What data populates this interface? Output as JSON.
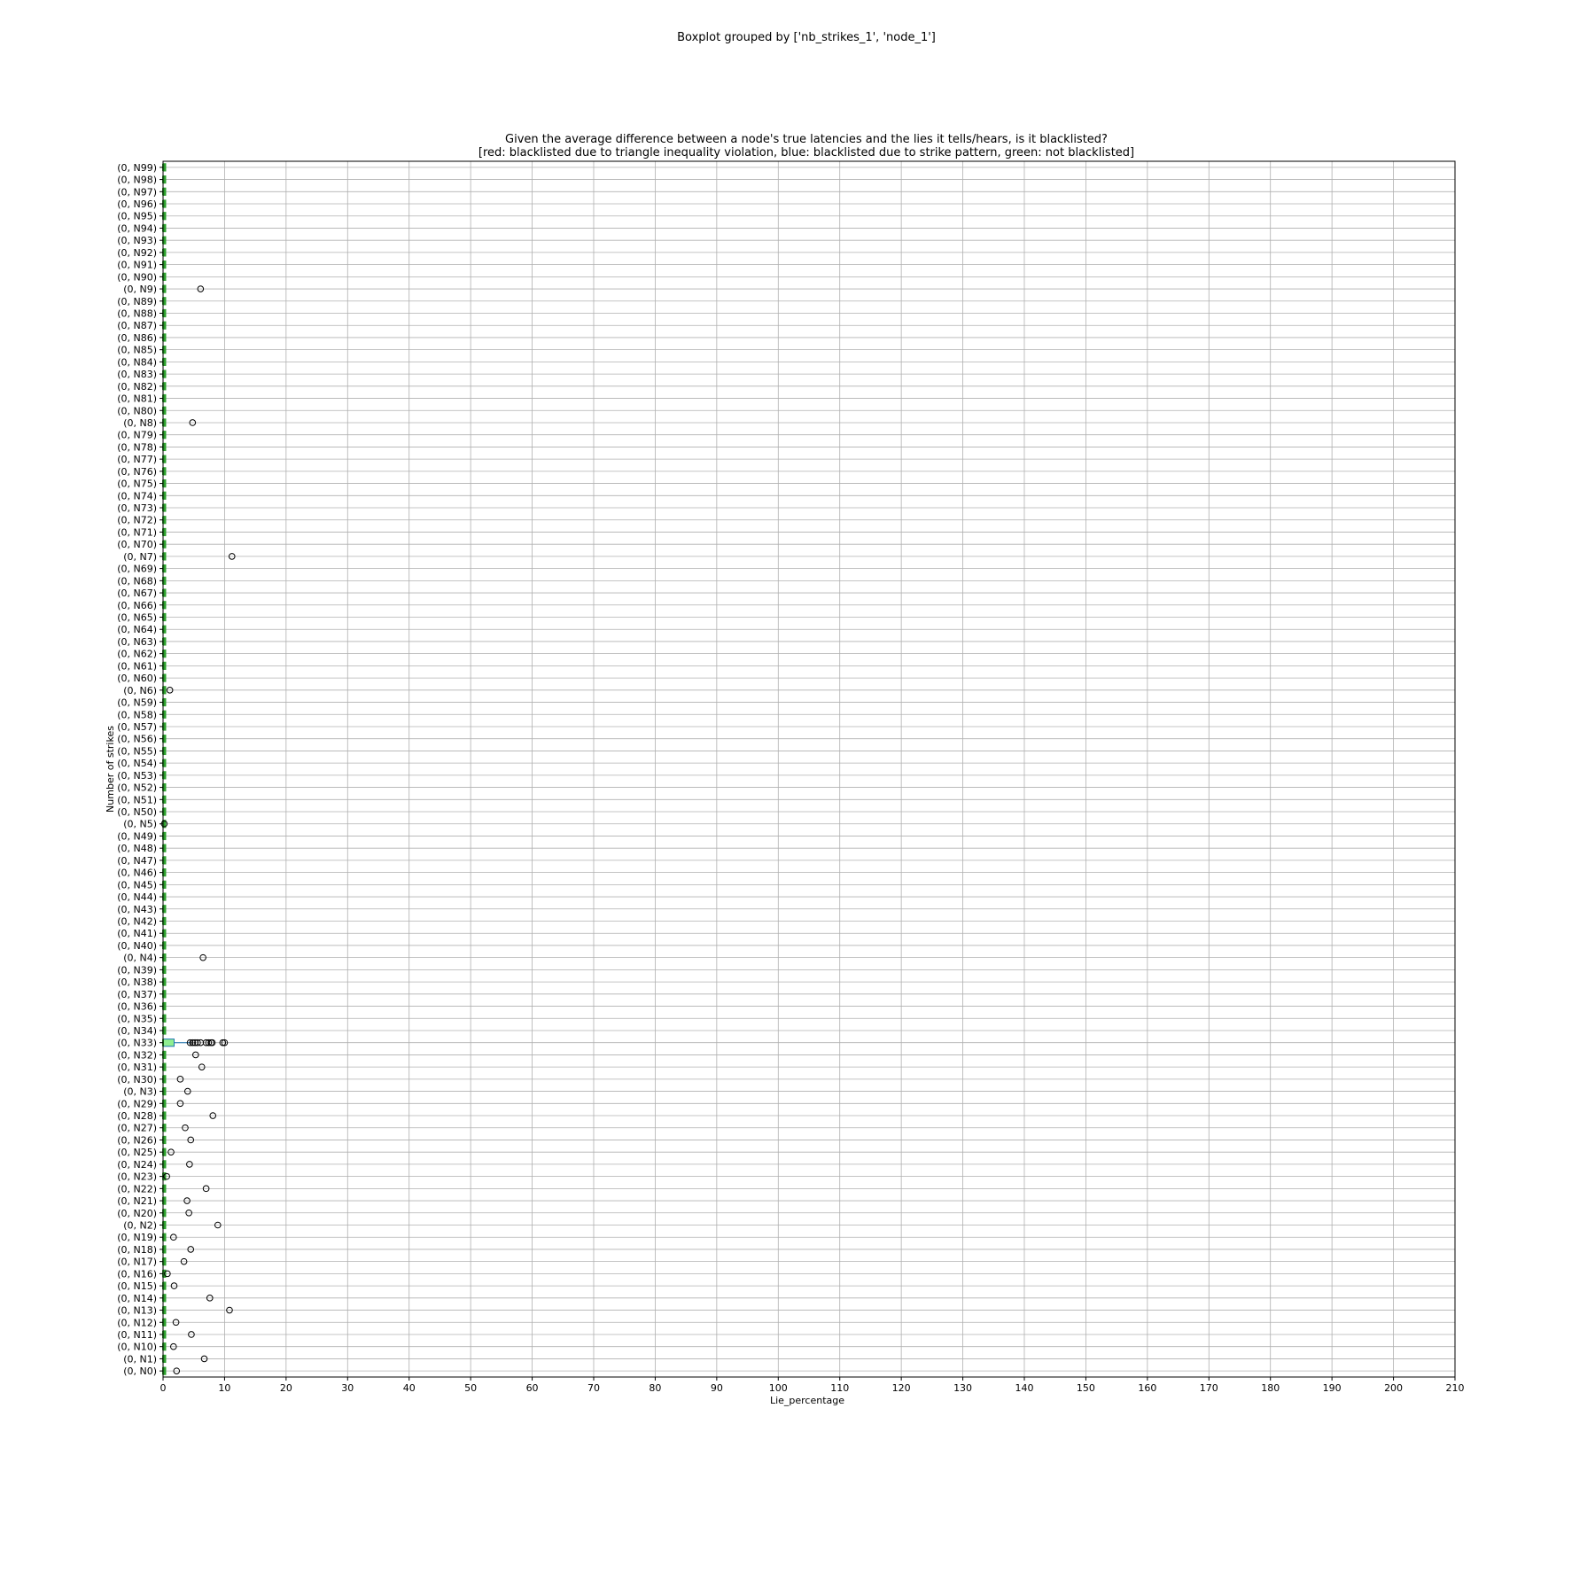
{
  "chart_data": {
    "type": "boxplot",
    "suptitle": "Boxplot grouped by ['nb_strikes_1', 'node_1']",
    "title_line1": "Given the average difference between a node's true latencies and the lies it tells/hears, is it blacklisted?",
    "title_line2": "[red: blacklisted due to triangle inequality violation, blue: blacklisted due to strike pattern, green: not blacklisted]",
    "xlabel": "Lie_percentage",
    "ylabel": "Number of strikes",
    "xlim": [
      0,
      210
    ],
    "xticks": [
      0,
      10,
      20,
      30,
      40,
      50,
      60,
      70,
      80,
      90,
      100,
      110,
      120,
      130,
      140,
      150,
      160,
      170,
      180,
      190,
      200,
      210
    ],
    "grid": true,
    "colors": {
      "not_blacklisted": "#2ca02c",
      "box_light": "#90ee90",
      "outlier_edge": "#000000",
      "grid": "#b0b0b0"
    },
    "categories": [
      "(0, N0)",
      "(0, N1)",
      "(0, N10)",
      "(0, N11)",
      "(0, N12)",
      "(0, N13)",
      "(0, N14)",
      "(0, N15)",
      "(0, N16)",
      "(0, N17)",
      "(0, N18)",
      "(0, N19)",
      "(0, N2)",
      "(0, N20)",
      "(0, N21)",
      "(0, N22)",
      "(0, N23)",
      "(0, N24)",
      "(0, N25)",
      "(0, N26)",
      "(0, N27)",
      "(0, N28)",
      "(0, N29)",
      "(0, N3)",
      "(0, N30)",
      "(0, N31)",
      "(0, N32)",
      "(0, N33)",
      "(0, N34)",
      "(0, N35)",
      "(0, N36)",
      "(0, N37)",
      "(0, N38)",
      "(0, N39)",
      "(0, N4)",
      "(0, N40)",
      "(0, N41)",
      "(0, N42)",
      "(0, N43)",
      "(0, N44)",
      "(0, N45)",
      "(0, N46)",
      "(0, N47)",
      "(0, N48)",
      "(0, N49)",
      "(0, N5)",
      "(0, N50)",
      "(0, N51)",
      "(0, N52)",
      "(0, N53)",
      "(0, N54)",
      "(0, N55)",
      "(0, N56)",
      "(0, N57)",
      "(0, N58)",
      "(0, N59)",
      "(0, N6)",
      "(0, N60)",
      "(0, N61)",
      "(0, N62)",
      "(0, N63)",
      "(0, N64)",
      "(0, N65)",
      "(0, N66)",
      "(0, N67)",
      "(0, N68)",
      "(0, N69)",
      "(0, N7)",
      "(0, N70)",
      "(0, N71)",
      "(0, N72)",
      "(0, N73)",
      "(0, N74)",
      "(0, N75)",
      "(0, N76)",
      "(0, N77)",
      "(0, N78)",
      "(0, N79)",
      "(0, N8)",
      "(0, N80)",
      "(0, N81)",
      "(0, N82)",
      "(0, N83)",
      "(0, N84)",
      "(0, N85)",
      "(0, N86)",
      "(0, N87)",
      "(0, N88)",
      "(0, N89)",
      "(0, N9)",
      "(0, N90)",
      "(0, N91)",
      "(0, N92)",
      "(0, N93)",
      "(0, N94)",
      "(0, N95)",
      "(0, N96)",
      "(0, N97)",
      "(0, N98)",
      "(0, N99)"
    ],
    "boxes": [
      {
        "q1": 0,
        "q3": 0.4,
        "median": 0,
        "whisker_low": 0,
        "whisker_high": 0.4
      },
      {
        "q1": 0,
        "q3": 1.8,
        "median": 0,
        "whisker_low": 0,
        "whisker_high": 4.5
      }
    ],
    "outliers": {
      "(0, N0)": [
        2.2
      ],
      "(0, N1)": [
        6.7
      ],
      "(0, N10)": [
        1.7
      ],
      "(0, N11)": [
        4.6
      ],
      "(0, N12)": [
        2.1
      ],
      "(0, N13)": [
        10.8
      ],
      "(0, N14)": [
        7.6
      ],
      "(0, N15)": [
        1.8
      ],
      "(0, N16)": [
        0.7
      ],
      "(0, N17)": [
        3.4
      ],
      "(0, N18)": [
        4.5
      ],
      "(0, N19)": [
        1.7
      ],
      "(0, N2)": [
        8.9
      ],
      "(0, N20)": [
        4.2
      ],
      "(0, N21)": [
        3.9
      ],
      "(0, N22)": [
        7.0
      ],
      "(0, N23)": [
        0.6
      ],
      "(0, N24)": [
        4.3
      ],
      "(0, N25)": [
        1.3
      ],
      "(0, N26)": [
        4.5
      ],
      "(0, N27)": [
        3.6
      ],
      "(0, N28)": [
        8.1
      ],
      "(0, N29)": [
        2.8
      ],
      "(0, N3)": [
        4.0
      ],
      "(0, N30)": [
        2.8
      ],
      "(0, N31)": [
        6.3
      ],
      "(0, N32)": [
        5.3
      ],
      "(0, N33)": [
        4.4,
        4.8,
        5.2,
        5.6,
        6.1,
        7.0,
        7.4,
        7.8,
        8.0,
        9.7,
        10.0
      ],
      "(0, N4)": [
        6.5
      ],
      "(0, N5)": [
        0.2
      ],
      "(0, N6)": [
        1.1
      ],
      "(0, N7)": [
        11.2
      ],
      "(0, N8)": [
        4.8
      ],
      "(0, N9)": [
        6.1
      ]
    }
  }
}
